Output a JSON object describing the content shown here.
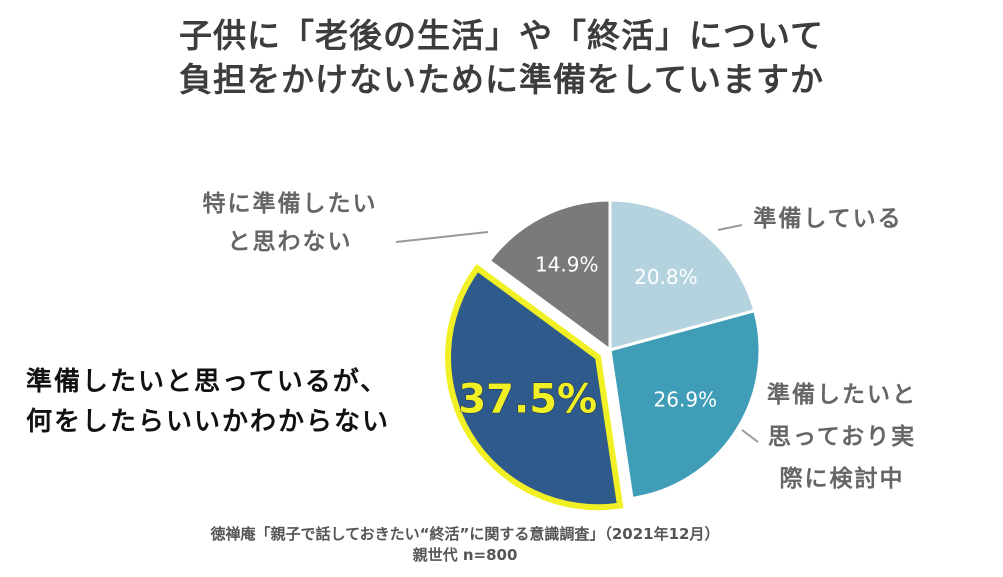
{
  "title_lines": [
    "子供に「老後の生活」や「終活」について",
    "負担をかけないために準備をしていますか"
  ],
  "source_lines": [
    "徳禅庵「親子で話しておきたい“終活”に関する意識調査」（2021年12月）",
    "親世代 n=800"
  ],
  "chart_data": {
    "type": "pie",
    "start_angle_deg": 0,
    "direction": "clockwise",
    "slices": [
      {
        "label_lines": [
          "準備している"
        ],
        "value": 20.8,
        "value_label": "20.8%",
        "color": "#b5d3df"
      },
      {
        "label_lines": [
          "準備したいと",
          "思っており実",
          "際に検討中"
        ],
        "value": 26.9,
        "value_label": "26.9%",
        "color": "#3f9db7"
      },
      {
        "label_lines": [
          "準備したいと思っているが、",
          "何をしたらいいかわからない"
        ],
        "value": 37.5,
        "value_label": "37.5%",
        "color": "#2f5a8c",
        "highlight": true,
        "highlight_color": "#f0f024"
      },
      {
        "label_lines": [
          "特に準備したい",
          "と思わない"
        ],
        "value": 14.9,
        "value_label": "14.9%",
        "color": "#7a7a7a"
      }
    ]
  }
}
